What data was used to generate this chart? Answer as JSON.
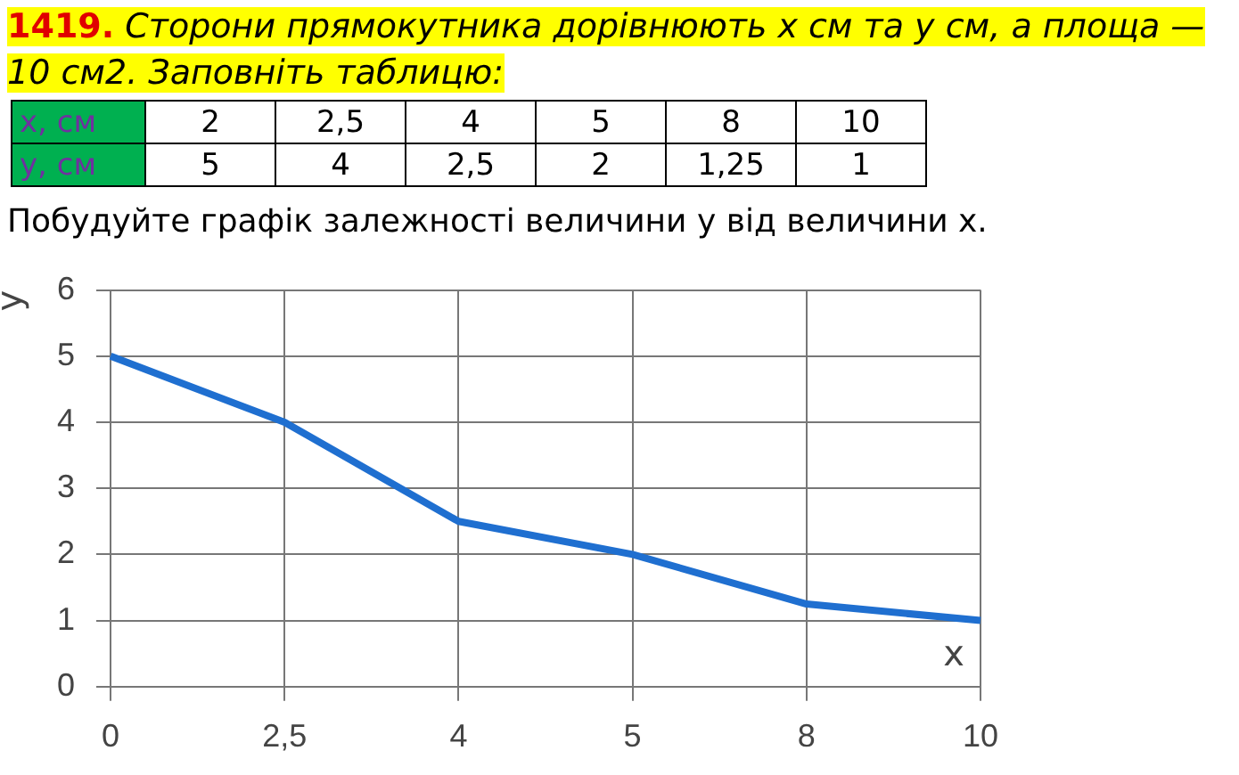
{
  "chart_data": {
    "type": "line",
    "title": "1419. Сторони прямокутника дорівнюють x см та у см, а площа — 10 см2. Заповніть таблицю:",
    "subtitle": "Побудуйте графік залежності величини у від величини x.",
    "annotations": [
      "x, см",
      "2",
      "2,5",
      "4",
      "5",
      "8",
      "10",
      "у, см",
      "5",
      "4",
      "2,5",
      "2",
      "1,25",
      "1"
    ],
    "xlabel": "x",
    "ylabel": "у",
    "categories": [
      "0",
      "2,5",
      "4",
      "5",
      "8",
      "10"
    ],
    "series": [
      {
        "color": "#1f6fd0",
        "values": [
          5,
          4,
          2.5,
          2,
          1.25,
          1
        ]
      }
    ],
    "ylim": [
      0,
      6
    ],
    "yticks": [
      0,
      1,
      2,
      3,
      4,
      5,
      6
    ],
    "grid": true,
    "legend": false,
    "marker": "none",
    "line_style": "solid"
  }
}
